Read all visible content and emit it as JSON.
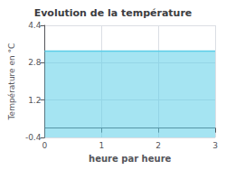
{
  "chart_data": {
    "type": "area",
    "title": "Evolution de la température",
    "xlabel": "heure par heure",
    "ylabel": "Température en °C",
    "x": [
      0,
      3
    ],
    "values": [
      3.3,
      3.3
    ],
    "xlim": [
      0,
      3
    ],
    "ylim": [
      -0.4,
      4.4
    ],
    "xticks": [
      0,
      1,
      2,
      3
    ],
    "yticks": [
      -0.4,
      1.2,
      2.8,
      4.4
    ],
    "color": "#5bcde8",
    "grid": true
  }
}
